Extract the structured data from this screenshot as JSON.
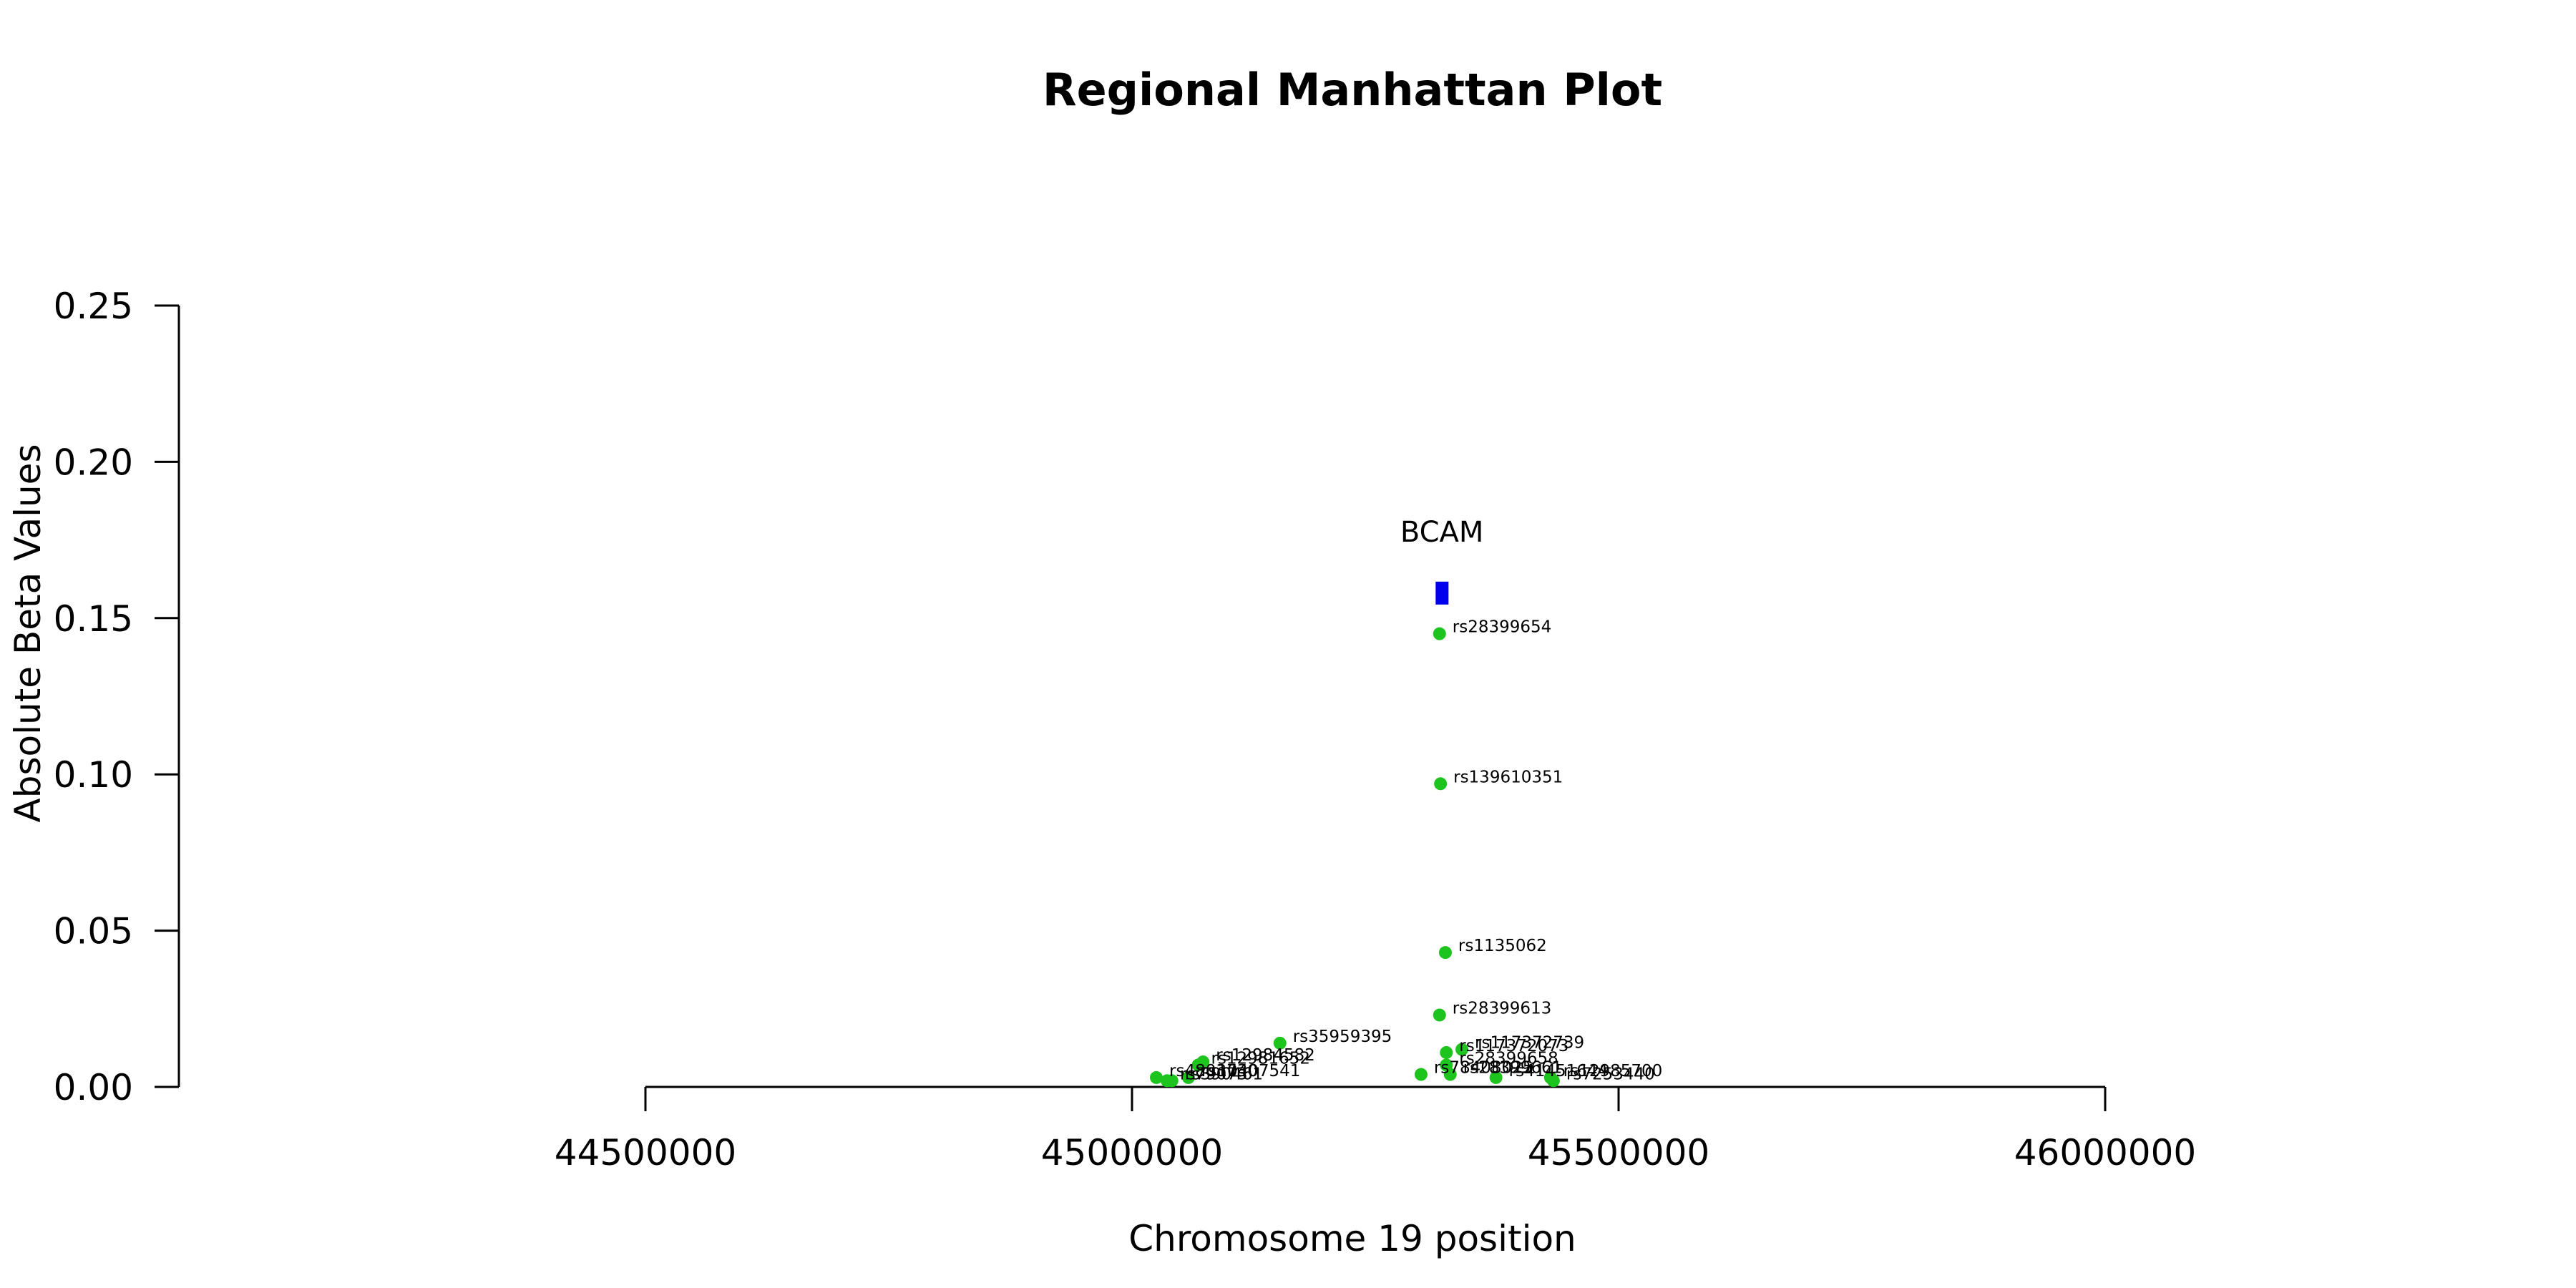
{
  "chart_data": {
    "type": "scatter",
    "title": "Regional Manhattan Plot",
    "xlabel": "Chromosome 19 position",
    "ylabel": "Absolute Beta Values",
    "xlim": [
      44500000,
      46000000
    ],
    "ylim": [
      0,
      0.25
    ],
    "x_ticks": [
      44500000,
      45000000,
      45500000,
      46000000
    ],
    "x_tick_labels": [
      "44500000",
      "45000000",
      "45500000",
      "46000000"
    ],
    "y_ticks": [
      0,
      0.05,
      0.1,
      0.15,
      0.2,
      0.25
    ],
    "y_tick_labels": [
      "0.00",
      "0.05",
      "0.10",
      "0.15",
      "0.20",
      "0.25"
    ],
    "grid": false,
    "point_color": "#1ec41e",
    "gene_color": "#0000ee",
    "genes": [
      {
        "name": "BCAM",
        "start": 45312000,
        "end": 45325000,
        "y": 0.158
      }
    ],
    "points": [
      {
        "label": "rs28399654",
        "x": 45316000,
        "y": 0.145
      },
      {
        "label": "rs139610351",
        "x": 45317000,
        "y": 0.097
      },
      {
        "label": "rs1135062",
        "x": 45322000,
        "y": 0.043
      },
      {
        "label": "rs28399613",
        "x": 45316000,
        "y": 0.023
      },
      {
        "label": "rs35959395",
        "x": 45152000,
        "y": 0.014
      },
      {
        "label": "rs117372739",
        "x": 45339000,
        "y": 0.012
      },
      {
        "label": "rs117372073",
        "x": 45323000,
        "y": 0.011
      },
      {
        "label": "rs28399658",
        "x": 45323000,
        "y": 0.007
      },
      {
        "label": "rs12984582",
        "x": 45073000,
        "y": 0.008
      },
      {
        "label": "rs12981652",
        "x": 45068000,
        "y": 0.007
      },
      {
        "label": "rs78408025",
        "x": 45297000,
        "y": 0.004
      },
      {
        "label": "rs28399661",
        "x": 45327000,
        "y": 0.004
      },
      {
        "label": "rs41451644",
        "x": 45374000,
        "y": 0.003
      },
      {
        "label": "rs12985700",
        "x": 45430000,
        "y": 0.003
      },
      {
        "label": "rs7253440",
        "x": 45433000,
        "y": 0.002
      },
      {
        "label": "rs10407541",
        "x": 45058000,
        "y": 0.003
      },
      {
        "label": "rs4803730",
        "x": 45025000,
        "y": 0.003
      },
      {
        "label": "rs79073",
        "x": 45036000,
        "y": 0.002
      },
      {
        "label": "rs390461",
        "x": 45041000,
        "y": 0.002
      }
    ]
  }
}
